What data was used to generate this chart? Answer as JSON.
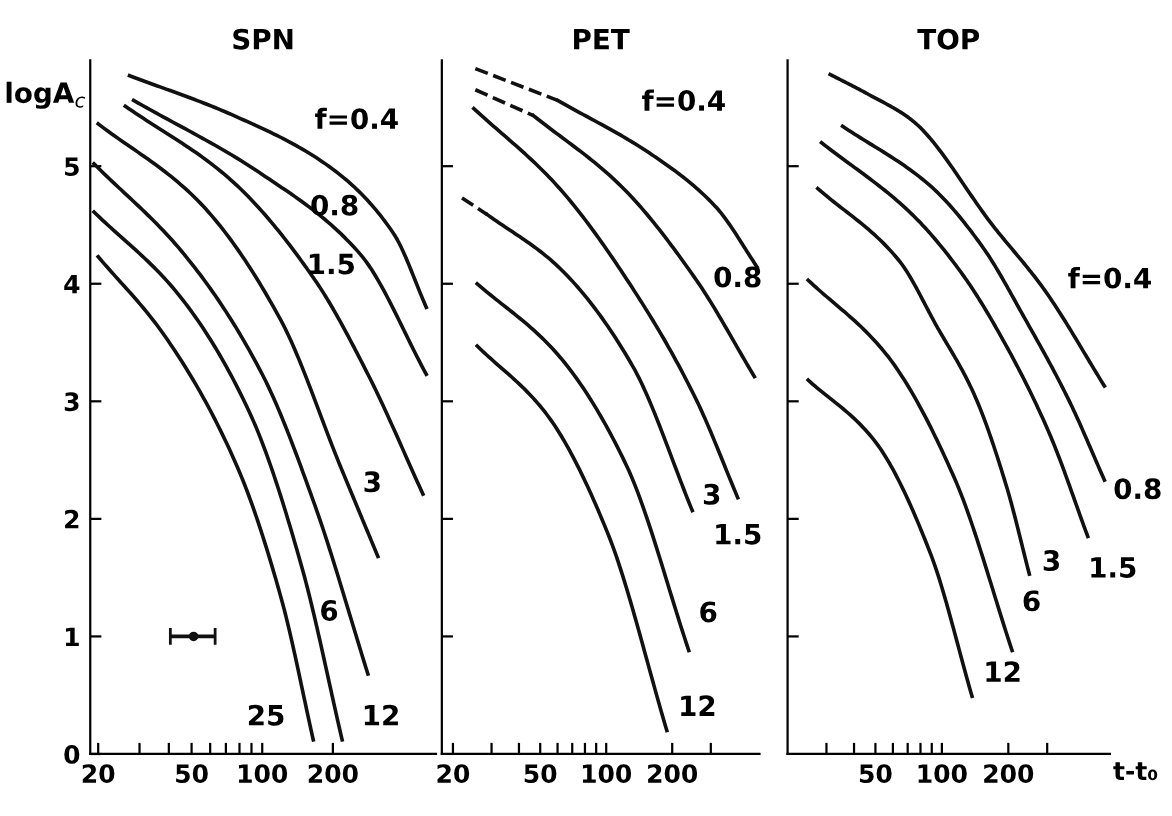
{
  "chart_data": [
    {
      "type": "line",
      "title": "SPN",
      "ylabel": "logA$_{c}$",
      "log": "x",
      "xlim": [
        18.5,
        550
      ],
      "ylim": [
        0,
        5.9
      ],
      "xticks": [
        20,
        {
          "value": 30,
          "label": null
        },
        {
          "value": 40,
          "label": null
        },
        50,
        {
          "value": 60,
          "label": null
        },
        {
          "value": 70,
          "label": null
        },
        {
          "value": 80,
          "label": null
        },
        {
          "value": 90,
          "label": null
        },
        100,
        200
      ],
      "yticks": [
        0,
        1,
        2,
        3,
        4,
        5
      ],
      "grid": false,
      "legend": false,
      "marker": "none",
      "series": [
        {
          "name": "f=0.4",
          "color": "#111111",
          "x": [
            27.2,
            73.8,
            192,
            362,
            500
          ],
          "values": [
            5.77,
            5.44,
            5.0,
            4.43,
            3.8
          ]
        },
        {
          "name": "0.8",
          "color": "#111111",
          "x": [
            28.3,
            100,
            262,
            500
          ],
          "values": [
            5.56,
            4.93,
            4.25,
            3.23
          ]
        },
        {
          "name": "1.5",
          "color": "#111111",
          "x": [
            26.1,
            73.8,
            168,
            282,
            484
          ],
          "values": [
            5.51,
            4.88,
            4.03,
            3.23,
            2.21
          ]
        },
        {
          "name": "3",
          "color": "#111111",
          "x": [
            20,
            53,
            120,
            215,
            311
          ],
          "values": [
            5.36,
            4.71,
            3.69,
            2.45,
            1.68
          ]
        },
        {
          "name": "6",
          "color": "#111111",
          "x": [
            19.2,
            46.5,
            100,
            168,
            282
          ],
          "values": [
            5.02,
            4.25,
            3.23,
            2.11,
            0.68
          ]
        },
        {
          "name": "12",
          "color": "#111111",
          "x": [
            19.2,
            43.9,
            89,
            147,
            219
          ],
          "values": [
            4.61,
            3.91,
            2.89,
            1.6,
            0.12
          ]
        },
        {
          "name": "25",
          "color": "#111111",
          "x": [
            20,
            38,
            78,
            121,
            165
          ],
          "values": [
            4.23,
            3.57,
            2.45,
            1.31,
            0.12
          ]
        },
        {
          "type": "scatter",
          "marker": "circle",
          "color": "#111111",
          "x": [
            51
          ],
          "values": [
            1
          ],
          "xerrors": [
            [
              40.6,
              63
            ]
          ]
        }
      ]
    },
    {
      "type": "line",
      "title": "PET",
      "log": "x",
      "xlim": [
        17.8,
        500
      ],
      "ylim": [
        0,
        5.9
      ],
      "tick_labels": "x",
      "xticks": [
        20,
        {
          "value": 30,
          "label": null
        },
        {
          "value": 40,
          "label": null
        },
        50,
        {
          "value": 60,
          "label": null
        },
        {
          "value": 70,
          "label": null
        },
        {
          "value": 80,
          "label": null
        },
        {
          "value": 90,
          "label": null
        },
        100,
        200,
        {
          "value": 300,
          "label": null
        }
      ],
      "yticks": [
        {
          "value": 1,
          "label": null
        },
        {
          "value": 2,
          "label": null
        },
        {
          "value": 3,
          "label": null
        },
        {
          "value": 4,
          "label": null
        },
        {
          "value": 5,
          "label": null
        }
      ],
      "grid": false,
      "legend": false,
      "marker": "none",
      "series": [
        {
          "color": "#111111",
          "line_style": "dashed",
          "x": [
            25.3,
            60
          ],
          "values": [
            5.83,
            5.56
          ]
        },
        {
          "name": "f=0.4",
          "color": "#111111",
          "x": [
            60,
            161,
            314,
            497
          ],
          "values": [
            5.56,
            5.1,
            4.66,
            4.12
          ]
        },
        {
          "color": "#111111",
          "line_style": "dashed",
          "x": [
            25.3,
            46.6
          ],
          "values": [
            5.65,
            5.43
          ]
        },
        {
          "name": "0.8",
          "color": "#111111",
          "x": [
            46.6,
            117,
            258,
            474
          ],
          "values": [
            5.43,
            4.83,
            4.03,
            3.21
          ]
        },
        {
          "name": "1.5",
          "color": "#111111",
          "x": [
            24.9,
            60,
            143,
            258,
            398
          ],
          "values": [
            5.49,
            4.83,
            3.86,
            3.01,
            2.18
          ]
        },
        {
          "color": "#111111",
          "line_style": "dashed",
          "x": [
            22,
            28.6
          ],
          "values": [
            4.73,
            4.59
          ]
        },
        {
          "name": "3",
          "color": "#111111",
          "x": [
            28.6,
            60,
            132,
            247
          ],
          "values": [
            4.59,
            4.15,
            3.3,
            2.07
          ]
        },
        {
          "name": "6",
          "color": "#111111",
          "x": [
            25.8,
            60,
            124,
            238
          ],
          "values": [
            4.0,
            3.4,
            2.45,
            0.88
          ]
        },
        {
          "name": "12",
          "color": "#111111",
          "x": [
            25.8,
            53.5,
            102,
            189
          ],
          "values": [
            3.47,
            2.89,
            1.87,
            0.2
          ]
        }
      ]
    },
    {
      "type": "line",
      "title": "TOP",
      "xlabel": "t-t₀",
      "log": "x",
      "xlim": [
        20,
        577
      ],
      "ylim": [
        0,
        5.9
      ],
      "tick_labels": "x",
      "xticks": [
        {
          "value": 30,
          "label": null
        },
        {
          "value": 40,
          "label": null
        },
        50,
        {
          "value": 60,
          "label": null
        },
        {
          "value": 70,
          "label": null
        },
        {
          "value": 80,
          "label": null
        },
        {
          "value": 90,
          "label": null
        },
        100,
        200,
        {
          "value": 300,
          "label": null
        }
      ],
      "yticks": [
        {
          "value": 1,
          "label": null
        },
        {
          "value": 2,
          "label": null
        },
        {
          "value": 3,
          "label": null
        },
        {
          "value": 4,
          "label": null
        },
        {
          "value": 5,
          "label": null
        }
      ],
      "grid": false,
      "legend": false,
      "marker": "none",
      "series": [
        {
          "name": "f=0.4",
          "color": "#111111",
          "x": [
            31.2,
            46.6,
            73.3,
            171,
            291,
            545
          ],
          "values": [
            5.78,
            5.61,
            5.39,
            4.49,
            3.95,
            3.13
          ]
        },
        {
          "name": "0.8",
          "color": "#111111",
          "x": [
            35.5,
            89,
            152,
            240,
            376,
            545
          ],
          "values": [
            5.34,
            4.83,
            4.32,
            3.69,
            3.01,
            2.33
          ]
        },
        {
          "name": "1.5",
          "color": "#111111",
          "x": [
            28.5,
            73.3,
            124,
            196,
            308,
            458
          ],
          "values": [
            5.2,
            4.59,
            4.08,
            3.47,
            2.72,
            1.85
          ]
        },
        {
          "name": "3",
          "color": "#111111",
          "x": [
            27.4,
            63.8,
            94.7,
            140,
            196,
            249
          ],
          "values": [
            4.81,
            4.2,
            3.64,
            3.06,
            2.28,
            1.53
          ]
        },
        {
          "name": "6",
          "color": "#111111",
          "x": [
            24.8,
            56,
            115,
            208
          ],
          "values": [
            4.03,
            3.4,
            2.33,
            0.88
          ]
        },
        {
          "name": "12",
          "color": "#111111",
          "x": [
            24.8,
            49.3,
            89,
            137
          ],
          "values": [
            3.18,
            2.67,
            1.7,
            0.49
          ]
        }
      ]
    }
  ]
}
